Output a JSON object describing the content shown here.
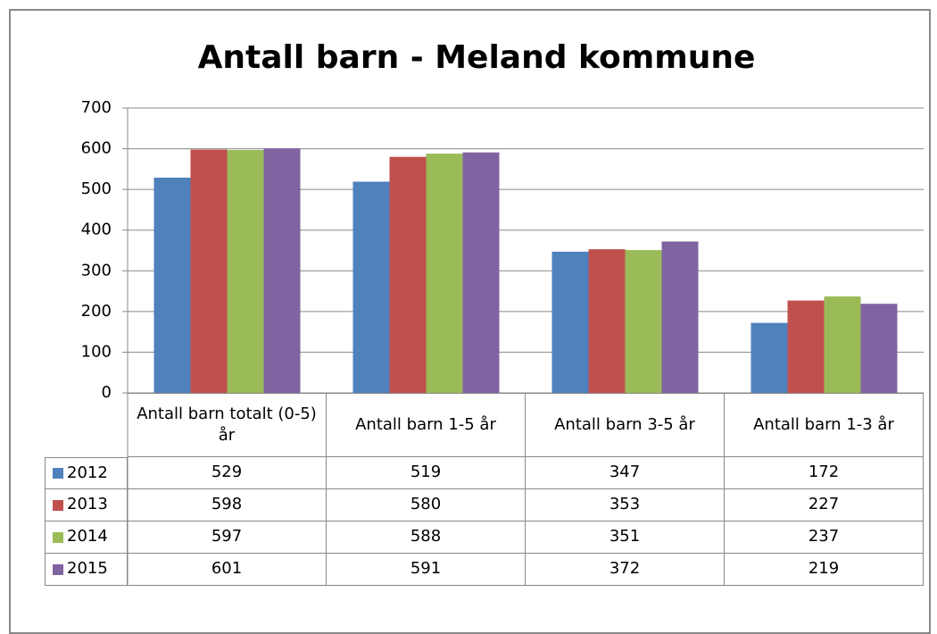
{
  "chart_data": {
    "type": "bar",
    "title": "Antall barn - Meland kommune",
    "categories": [
      "Antall barn totalt (0-5) år",
      "Antall barn 1-5 år",
      "Antall barn 3-5 år",
      "Antall barn 1-3 år"
    ],
    "series": [
      {
        "name": "2012",
        "color": "#4f81bd",
        "values": [
          529,
          519,
          347,
          172
        ]
      },
      {
        "name": "2013",
        "color": "#c0504d",
        "values": [
          598,
          580,
          353,
          227
        ]
      },
      {
        "name": "2014",
        "color": "#9bbb59",
        "values": [
          597,
          588,
          351,
          237
        ]
      },
      {
        "name": "2015",
        "color": "#8064a2",
        "values": [
          601,
          591,
          372,
          219
        ]
      }
    ],
    "ylim": [
      0,
      700
    ],
    "yticks": [
      0,
      100,
      200,
      300,
      400,
      500,
      600,
      700
    ],
    "grid": true
  }
}
